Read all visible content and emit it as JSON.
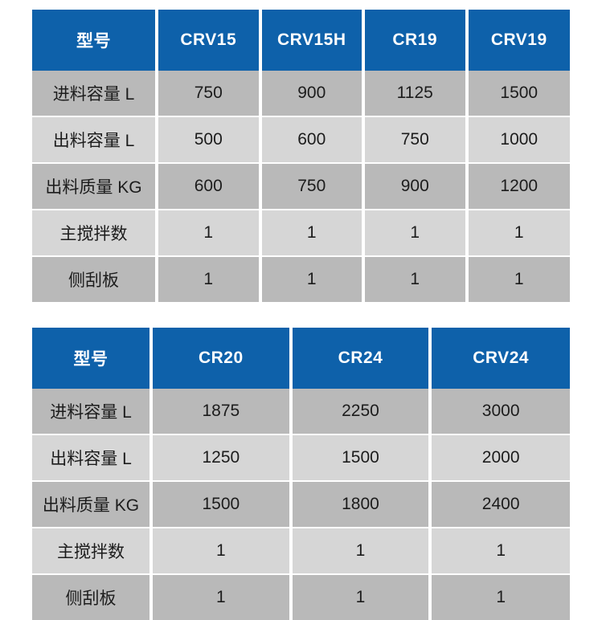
{
  "colors": {
    "header_background": "#0e61aa",
    "header_text": "#ffffff",
    "row_dark": "#b9b9b9",
    "row_light": "#d6d6d6",
    "cell_text": "#1c1c1c",
    "separator": "#ffffff"
  },
  "chart_data": [
    {
      "type": "table",
      "title": "",
      "columns": [
        "型号",
        "CRV15",
        "CRV15H",
        "CR19",
        "CRV19"
      ],
      "rows": [
        [
          "进料容量 L",
          "750",
          "900",
          "1125",
          "1500"
        ],
        [
          "出料容量 L",
          "500",
          "600",
          "750",
          "1000"
        ],
        [
          "出料质量 KG",
          "600",
          "750",
          "900",
          "1200"
        ],
        [
          "主搅拌数",
          "1",
          "1",
          "1",
          "1"
        ],
        [
          "侧刮板",
          "1",
          "1",
          "1",
          "1"
        ]
      ]
    },
    {
      "type": "table",
      "title": "",
      "columns": [
        "型号",
        "CR20",
        "CR24",
        "CRV24"
      ],
      "rows": [
        [
          "进料容量 L",
          "1875",
          "2250",
          "3000"
        ],
        [
          "出料容量 L",
          "1250",
          "1500",
          "2000"
        ],
        [
          "出料质量 KG",
          "1500",
          "1800",
          "2400"
        ],
        [
          "主搅拌数",
          "1",
          "1",
          "1"
        ],
        [
          "侧刮板",
          "1",
          "1",
          "1"
        ]
      ]
    }
  ]
}
